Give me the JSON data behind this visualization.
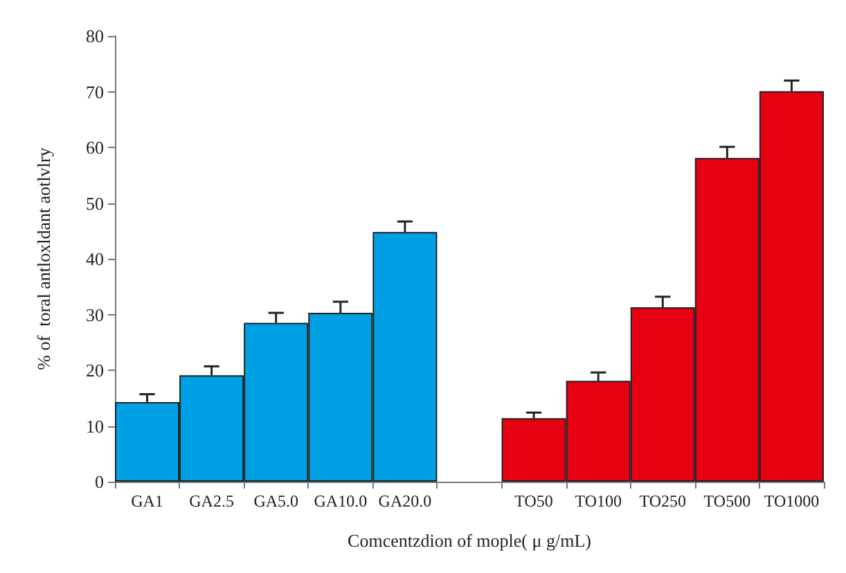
{
  "chart_data": {
    "type": "bar",
    "categories": [
      "GA1",
      "GA2.5",
      "GA5.0",
      "GA10.0",
      "GA20.0",
      null,
      "TO50",
      "TO100",
      "TO250",
      "TO500",
      "TO1000"
    ],
    "values": [
      14.3,
      19.1,
      28.5,
      30.3,
      44.8,
      null,
      11.4,
      18.1,
      31.3,
      58.1,
      70.1
    ],
    "errors": [
      1.4,
      1.6,
      1.8,
      2.0,
      1.9,
      null,
      1.0,
      1.5,
      1.9,
      2.0,
      1.9
    ],
    "colors": [
      "#00a0e4",
      "#00a0e4",
      "#00a0e4",
      "#00a0e4",
      "#00a0e4",
      null,
      "#e60012",
      "#e60012",
      "#e60012",
      "#e60012",
      "#e60012"
    ],
    "xlabel": "Comcentzdion of mople( μ g/mL)",
    "ylabel": "% of  toral antloxldant aotlvlry",
    "ylim": [
      0,
      80
    ],
    "yticks": [
      0,
      10,
      20,
      30,
      40,
      50,
      60,
      70,
      80
    ],
    "grid": false
  }
}
